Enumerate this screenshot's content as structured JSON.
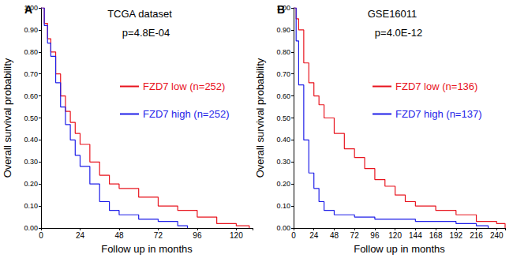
{
  "chart_data": [
    {
      "type": "line",
      "title": "TCGA dataset",
      "subtitle": "p=4.8E-04",
      "annotations": [
        "A"
      ],
      "x_label": "Follow up in months",
      "y_label": "Overall survival probability",
      "xlim": [
        0,
        130
      ],
      "xticks": [
        0,
        24,
        48,
        72,
        96,
        120
      ],
      "ylim": [
        0,
        1
      ],
      "yticks": [
        {
          "value": 0,
          "label": "0.00"
        },
        {
          "value": 0.1,
          "label": "0.10"
        },
        {
          "value": 0.2,
          "label": "0.20"
        },
        {
          "value": 0.3,
          "label": "0.30"
        },
        {
          "value": 0.4,
          "label": "0.40"
        },
        {
          "value": 0.5,
          "label": "0.50"
        },
        {
          "value": 0.6,
          "label": "0.60"
        },
        {
          "value": 0.7,
          "label": "0.70"
        },
        {
          "value": 0.8,
          "label": "0.80"
        },
        {
          "value": 0.9,
          "label": "0.90"
        },
        {
          "value": 1,
          "label": "1.00"
        }
      ],
      "grid": false,
      "legend": "upper right",
      "series": [
        {
          "name": "FZD7 low (n=252)",
          "color": "#e8141e",
          "line_style": "step",
          "x": [
            0,
            2,
            4,
            6,
            9,
            12,
            15,
            18,
            21,
            24,
            30,
            36,
            42,
            48,
            60,
            72,
            84,
            96,
            108,
            120,
            128
          ],
          "values": [
            1.0,
            0.93,
            0.86,
            0.8,
            0.7,
            0.6,
            0.53,
            0.48,
            0.43,
            0.38,
            0.3,
            0.24,
            0.2,
            0.18,
            0.14,
            0.1,
            0.08,
            0.05,
            0.02,
            0.01,
            0.0
          ]
        },
        {
          "name": "FZD7 high (n=252)",
          "color": "#1e1ee8",
          "line_style": "step",
          "x": [
            0,
            2,
            4,
            6,
            9,
            12,
            15,
            18,
            21,
            24,
            30,
            36,
            42,
            48,
            60,
            72,
            84,
            90
          ],
          "values": [
            1.0,
            0.92,
            0.84,
            0.78,
            0.66,
            0.55,
            0.47,
            0.4,
            0.33,
            0.28,
            0.2,
            0.12,
            0.08,
            0.06,
            0.04,
            0.03,
            0.01,
            0.0
          ]
        }
      ]
    },
    {
      "type": "line",
      "title": "GSE16011",
      "subtitle": "p=4.0E-12",
      "annotations": [
        "B"
      ],
      "x_label": "Follow up in months",
      "y_label": "Overall survival probability",
      "xlim": [
        0,
        250
      ],
      "xticks": [
        0,
        24,
        48,
        72,
        96,
        120,
        144,
        168,
        192,
        216,
        240
      ],
      "ylim": [
        0,
        1
      ],
      "yticks": [
        {
          "value": 0,
          "label": "0.00"
        },
        {
          "value": 0.1,
          "label": "0.10"
        },
        {
          "value": 0.2,
          "label": "0.20"
        },
        {
          "value": 0.3,
          "label": "0.30"
        },
        {
          "value": 0.4,
          "label": "0.40"
        },
        {
          "value": 0.5,
          "label": "0.50"
        },
        {
          "value": 0.6,
          "label": "0.60"
        },
        {
          "value": 0.7,
          "label": "0.70"
        },
        {
          "value": 0.8,
          "label": "0.80"
        },
        {
          "value": 0.9,
          "label": "0.90"
        },
        {
          "value": 1,
          "label": "1.00"
        }
      ],
      "grid": false,
      "legend": "upper right",
      "series": [
        {
          "name": "FZD7 low (n=136)",
          "color": "#e8141e",
          "line_style": "step",
          "x": [
            0,
            3,
            6,
            12,
            18,
            24,
            30,
            36,
            48,
            60,
            72,
            84,
            96,
            108,
            120,
            132,
            144,
            168,
            192,
            216,
            240,
            250
          ],
          "values": [
            1.0,
            0.95,
            0.9,
            0.75,
            0.66,
            0.6,
            0.56,
            0.5,
            0.43,
            0.36,
            0.32,
            0.27,
            0.22,
            0.19,
            0.15,
            0.12,
            0.1,
            0.08,
            0.06,
            0.03,
            0.02,
            0.0
          ]
        },
        {
          "name": "FZD7 high (n=137)",
          "color": "#1e1ee8",
          "line_style": "step",
          "x": [
            0,
            3,
            6,
            12,
            18,
            24,
            30,
            36,
            48,
            72,
            96,
            144,
            192,
            216,
            230
          ],
          "values": [
            1.0,
            0.85,
            0.65,
            0.4,
            0.25,
            0.18,
            0.12,
            0.08,
            0.06,
            0.05,
            0.04,
            0.03,
            0.02,
            0.01,
            0.0
          ]
        }
      ]
    }
  ]
}
